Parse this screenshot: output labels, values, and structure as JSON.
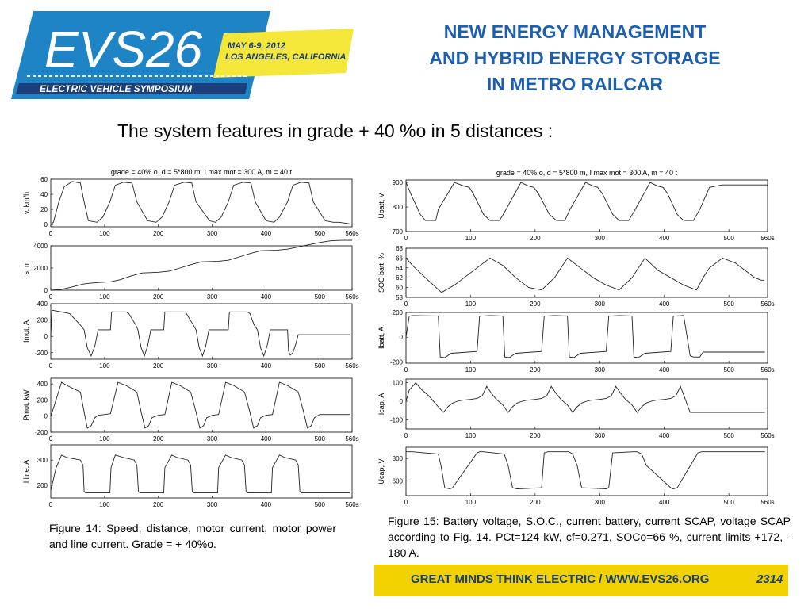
{
  "logo": {
    "name": "EVS26",
    "dates": "MAY 6-9, 2012",
    "location": "LOS ANGELES, CALIFORNIA",
    "tagline": "ELECTRIC VEHICLE SYMPOSIUM",
    "colors": {
      "blue": "#1e84c6",
      "dark_blue": "#1b3f7a",
      "yellow": "#f5e63a"
    }
  },
  "title_lines": [
    "NEW ENERGY MANAGEMENT",
    "AND  HYBRID ENERGY STORAGE",
    "IN METRO RAILCAR"
  ],
  "intro": "The system features in grade  + 40 %o in 5 distances :",
  "captions": {
    "fig14": "Figure 14: Speed, distance, motor current, motor power and line current. Grade = + 40%o.",
    "fig15": "Figure 15: Battery voltage, S.O.C., current battery, current SCAP, voltage SCAP   according to Fig. 14. PCt=124 kW, cf=0.271, SOCo=66 %, current limits +172, - 180 A."
  },
  "footer": {
    "text": "GREAT MINDS THINK ELECTRIC  /  WWW.EVS26.ORG",
    "slide_number": "2314"
  },
  "chart_data": [
    {
      "type": "line",
      "title": "grade = 40% o,  d = 5*800 m, I max mot = 300 A,  m = 40 t",
      "ylabel": "v, km/h",
      "xlim": [
        0,
        560
      ],
      "ylim": [
        -3,
        60
      ],
      "x_ticks": [
        "0",
        "100",
        "200",
        "300",
        "400",
        "500",
        "560s"
      ],
      "y_ticks": [
        "0",
        "20",
        "40",
        "60"
      ],
      "x": [
        0,
        5,
        15,
        25,
        40,
        55,
        62,
        70,
        86,
        97,
        110,
        120,
        135,
        151,
        160,
        180,
        196,
        207,
        220,
        230,
        248,
        262,
        270,
        295,
        306,
        317,
        330,
        340,
        357,
        372,
        380,
        400,
        415,
        425,
        440,
        450,
        465,
        480,
        488,
        510,
        525,
        535,
        545,
        555
      ],
      "values": [
        0,
        3,
        30,
        50,
        57,
        55,
        30,
        5,
        3,
        10,
        30,
        52,
        56,
        55,
        30,
        5,
        3,
        10,
        30,
        52,
        56,
        55,
        30,
        5,
        3,
        10,
        30,
        52,
        56,
        55,
        30,
        5,
        3,
        10,
        30,
        52,
        56,
        55,
        30,
        5,
        3,
        3,
        2,
        1
      ]
    },
    {
      "type": "line",
      "title": "",
      "ylabel": "s, m",
      "xlim": [
        0,
        560
      ],
      "ylim": [
        0,
        4000
      ],
      "x_ticks": [
        "0",
        "100",
        "200",
        "300",
        "400",
        "500",
        "560s"
      ],
      "y_ticks": [
        "0",
        "2000",
        "4000"
      ],
      "x": [
        0,
        20,
        40,
        60,
        70,
        90,
        110,
        130,
        150,
        170,
        180,
        200,
        220,
        240,
        260,
        280,
        290,
        310,
        330,
        350,
        370,
        390,
        400,
        420,
        440,
        460,
        480,
        500,
        510,
        520,
        530,
        540,
        550,
        560
      ],
      "values": [
        0,
        80,
        300,
        560,
        620,
        700,
        760,
        960,
        1300,
        1560,
        1580,
        1620,
        1720,
        2000,
        2300,
        2560,
        2580,
        2600,
        2700,
        3000,
        3300,
        3560,
        3580,
        3600,
        3700,
        3900,
        4100,
        4300,
        4380,
        4450,
        4480,
        4490,
        4495,
        4500
      ]
    },
    {
      "type": "line",
      "title": "",
      "ylabel": "Imot, A",
      "xlim": [
        0,
        560
      ],
      "ylim": [
        -280,
        400
      ],
      "x_ticks": [
        "0",
        "100",
        "200",
        "300",
        "400",
        "500",
        "560s"
      ],
      "y_ticks": [
        "-200",
        "0",
        "200",
        "400"
      ],
      "x": [
        0,
        2,
        20,
        35,
        55,
        62,
        68,
        75,
        82,
        88,
        111,
        113,
        140,
        145,
        158,
        162,
        168,
        174,
        180,
        186,
        210,
        212,
        250,
        252,
        265,
        270,
        276,
        282,
        288,
        294,
        330,
        332,
        365,
        370,
        378,
        384,
        390,
        396,
        402,
        408,
        440,
        442,
        445,
        450,
        455,
        460,
        556
      ],
      "values": [
        0,
        320,
        300,
        280,
        140,
        80,
        -140,
        -240,
        -120,
        80,
        80,
        300,
        300,
        280,
        140,
        80,
        -140,
        -240,
        -120,
        80,
        80,
        300,
        300,
        280,
        140,
        80,
        -140,
        -240,
        -120,
        80,
        80,
        300,
        300,
        280,
        140,
        80,
        -140,
        -240,
        -120,
        80,
        80,
        -180,
        -230,
        -200,
        -100,
        20,
        20
      ]
    },
    {
      "type": "line",
      "title": "",
      "ylabel": "Pmot, kW",
      "xlim": [
        0,
        560
      ],
      "ylim": [
        -200,
        470
      ],
      "x_ticks": [
        "0",
        "100",
        "200",
        "300",
        "400",
        "500",
        "560s"
      ],
      "y_ticks": [
        "-200",
        "0",
        "200",
        "400"
      ],
      "x": [
        0,
        5,
        20,
        30,
        55,
        62,
        68,
        75,
        82,
        88,
        100,
        111,
        125,
        140,
        160,
        168,
        175,
        182,
        188,
        200,
        212,
        225,
        240,
        260,
        270,
        277,
        284,
        290,
        300,
        312,
        325,
        340,
        360,
        370,
        377,
        384,
        390,
        400,
        412,
        425,
        440,
        460,
        470,
        477,
        484,
        490,
        500,
        556
      ],
      "values": [
        0,
        100,
        420,
        380,
        300,
        50,
        -150,
        -120,
        -20,
        10,
        20,
        30,
        420,
        380,
        300,
        50,
        -150,
        -120,
        -20,
        10,
        20,
        420,
        380,
        300,
        50,
        -150,
        -120,
        -20,
        10,
        20,
        420,
        380,
        300,
        50,
        -150,
        -120,
        -20,
        10,
        20,
        420,
        380,
        300,
        50,
        -150,
        -120,
        -20,
        20,
        20
      ]
    },
    {
      "type": "line",
      "title": "",
      "ylabel": "I line, A",
      "xlim": [
        0,
        560
      ],
      "ylim": [
        150,
        360
      ],
      "x_ticks": [
        "0",
        "100",
        "200",
        "300",
        "400",
        "500",
        "560s"
      ],
      "y_ticks": [
        "200",
        "300"
      ],
      "x": [
        0,
        10,
        20,
        30,
        55,
        60,
        62,
        65,
        110,
        112,
        120,
        135,
        155,
        160,
        163,
        166,
        210,
        212,
        225,
        235,
        255,
        260,
        263,
        266,
        310,
        312,
        325,
        335,
        355,
        360,
        363,
        366,
        410,
        412,
        425,
        435,
        455,
        460,
        463,
        466,
        556
      ],
      "values": [
        180,
        270,
        320,
        310,
        300,
        280,
        175,
        170,
        170,
        270,
        320,
        310,
        300,
        280,
        175,
        170,
        170,
        270,
        320,
        310,
        300,
        280,
        175,
        170,
        170,
        270,
        320,
        310,
        300,
        280,
        175,
        170,
        170,
        270,
        320,
        310,
        300,
        280,
        175,
        170,
        170
      ]
    },
    {
      "type": "line",
      "title": "grade = 40% o, d = 5*800 m, I max mot = 300 A, m = 40 t",
      "ylabel": "Ubatt, V",
      "xlim": [
        0,
        560
      ],
      "ylim": [
        700,
        910
      ],
      "x_ticks": [
        "0",
        "100",
        "200",
        "300",
        "400",
        "500",
        "560s"
      ],
      "y_ticks": [
        "700",
        "800",
        "900"
      ],
      "x": [
        0,
        8,
        22,
        30,
        46,
        50,
        75,
        90,
        98,
        104,
        120,
        130,
        145,
        155,
        178,
        190,
        198,
        205,
        222,
        233,
        246,
        254,
        278,
        290,
        297,
        304,
        320,
        330,
        345,
        355,
        378,
        390,
        398,
        405,
        420,
        430,
        445,
        455,
        470,
        480,
        490,
        560
      ],
      "values": [
        900,
        850,
        770,
        745,
        745,
        790,
        900,
        885,
        880,
        855,
        770,
        745,
        745,
        790,
        900,
        885,
        880,
        855,
        770,
        745,
        745,
        790,
        900,
        885,
        880,
        855,
        770,
        745,
        745,
        790,
        900,
        885,
        880,
        855,
        770,
        745,
        745,
        790,
        880,
        885,
        890,
        890
      ]
    },
    {
      "type": "line",
      "title": "",
      "ylabel": "SOC batt, %",
      "xlim": [
        0,
        560
      ],
      "ylim": [
        58,
        68
      ],
      "x_ticks": [
        "0",
        "100",
        "200",
        "300",
        "400",
        "500",
        "560s"
      ],
      "y_ticks": [
        "58",
        "60",
        "62",
        "64",
        "66",
        "68"
      ],
      "x": [
        0,
        10,
        30,
        55,
        75,
        90,
        110,
        130,
        150,
        170,
        190,
        210,
        230,
        250,
        270,
        290,
        310,
        330,
        350,
        370,
        390,
        410,
        430,
        450,
        460,
        470,
        480,
        490,
        500,
        510,
        520,
        530,
        540,
        550,
        555
      ],
      "values": [
        66,
        64.5,
        62,
        59,
        60.5,
        62,
        64,
        66,
        64.5,
        62,
        60,
        59.5,
        62,
        66,
        64,
        62,
        60.5,
        59.5,
        62,
        66,
        63.5,
        62,
        60.5,
        59.5,
        62,
        64,
        65,
        66,
        65.5,
        65,
        64,
        63,
        62,
        61.5,
        61.5
      ]
    },
    {
      "type": "line",
      "title": "",
      "ylabel": "Ibatt, A",
      "xlim": [
        0,
        560
      ],
      "ylim": [
        -210,
        200
      ],
      "x_ticks": [
        "0",
        "100",
        "200",
        "300",
        "400",
        "500",
        "560s"
      ],
      "y_ticks": [
        "-200",
        "0",
        "200"
      ],
      "x": [
        0,
        5,
        10,
        50,
        53,
        60,
        70,
        110,
        114,
        130,
        150,
        153,
        160,
        170,
        210,
        214,
        230,
        250,
        253,
        260,
        270,
        310,
        314,
        330,
        350,
        353,
        360,
        370,
        410,
        414,
        430,
        440,
        445,
        455,
        460,
        556
      ],
      "values": [
        0,
        170,
        175,
        172,
        -160,
        -165,
        -130,
        -115,
        170,
        175,
        172,
        -160,
        -165,
        -130,
        -115,
        170,
        175,
        172,
        -160,
        -165,
        -130,
        -115,
        170,
        175,
        172,
        -160,
        -165,
        -130,
        -115,
        170,
        175,
        -150,
        -160,
        -160,
        -120,
        -120
      ]
    },
    {
      "type": "line",
      "title": "",
      "ylabel": "Icap, A",
      "xlim": [
        0,
        560
      ],
      "ylim": [
        -150,
        120
      ],
      "x_ticks": [
        "0",
        "100",
        "200",
        "300",
        "400",
        "500",
        "560s"
      ],
      "y_ticks": [
        "-100",
        "0",
        "100"
      ],
      "x": [
        0,
        5,
        15,
        25,
        35,
        40,
        50,
        58,
        65,
        72,
        80,
        86,
        100,
        110,
        118,
        125,
        133,
        140,
        150,
        158,
        165,
        172,
        180,
        186,
        200,
        210,
        218,
        225,
        233,
        240,
        250,
        258,
        265,
        272,
        280,
        286,
        300,
        310,
        318,
        325,
        333,
        340,
        350,
        358,
        365,
        372,
        380,
        386,
        400,
        410,
        418,
        425,
        440,
        460,
        556
      ],
      "values": [
        0,
        60,
        100,
        60,
        30,
        10,
        -30,
        -60,
        -30,
        -10,
        0,
        5,
        10,
        15,
        30,
        80,
        40,
        10,
        -20,
        -60,
        -30,
        -10,
        0,
        5,
        10,
        15,
        30,
        80,
        40,
        10,
        -20,
        -60,
        -30,
        -10,
        0,
        5,
        10,
        15,
        30,
        80,
        40,
        10,
        -20,
        -60,
        -30,
        -10,
        0,
        5,
        10,
        15,
        30,
        80,
        -60,
        -60,
        -60
      ]
    },
    {
      "type": "line",
      "title": "",
      "ylabel": "Ucap, V",
      "xlim": [
        0,
        560
      ],
      "ylim": [
        470,
        900
      ],
      "x_ticks": [
        "0",
        "100",
        "200",
        "300",
        "400",
        "500",
        "560s"
      ],
      "y_ticks": [
        "600",
        "800"
      ],
      "x": [
        0,
        5,
        10,
        50,
        54,
        60,
        68,
        72,
        110,
        114,
        120,
        152,
        158,
        165,
        172,
        210,
        214,
        220,
        252,
        258,
        265,
        272,
        310,
        314,
        320,
        352,
        358,
        365,
        372,
        410,
        414,
        420,
        452,
        458,
        465,
        472,
        520,
        556
      ],
      "values": [
        860,
        860,
        860,
        840,
        740,
        540,
        530,
        540,
        850,
        860,
        860,
        840,
        740,
        540,
        530,
        540,
        850,
        860,
        860,
        840,
        740,
        540,
        530,
        540,
        850,
        860,
        860,
        840,
        740,
        540,
        530,
        540,
        850,
        860,
        860,
        860,
        860,
        860
      ]
    }
  ]
}
